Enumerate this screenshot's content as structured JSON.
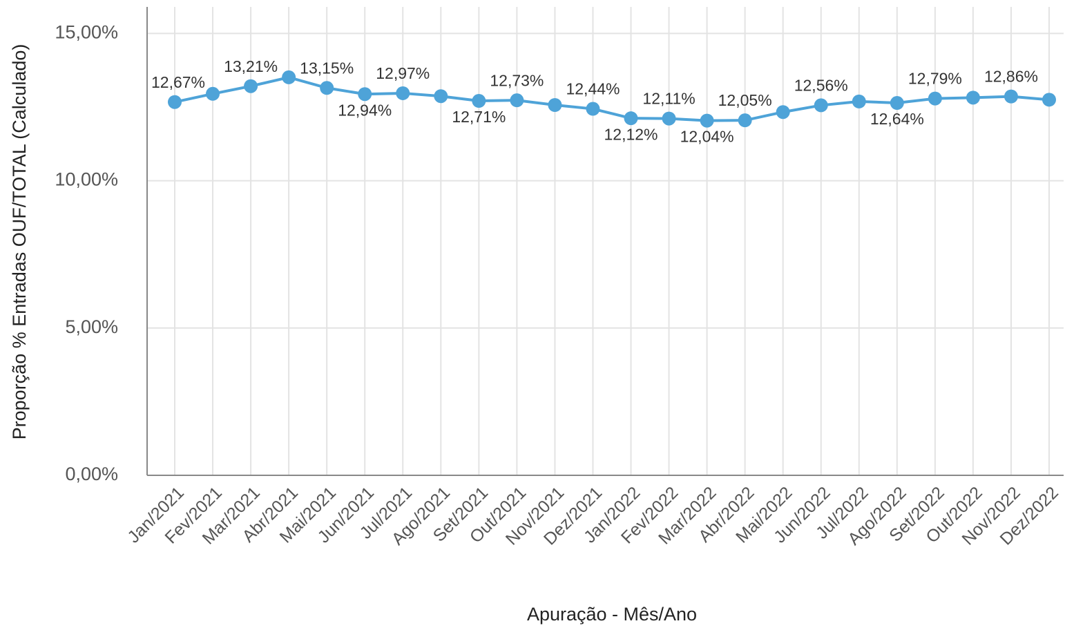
{
  "chart_data": {
    "type": "line",
    "y_label": "Proporção % Entradas OUF/TOTAL (Calculado)",
    "x_label": "Apuração - Mês/Ano",
    "categories": [
      "Jan/2021",
      "Fev/2021",
      "Mar/2021",
      "Abr/2021",
      "Mai/2021",
      "Jun/2021",
      "Jul/2021",
      "Ago/2021",
      "Set/2021",
      "Out/2021",
      "Nov/2021",
      "Dez/2021",
      "Jan/2022",
      "Fev/2022",
      "Mar/2022",
      "Abr/2022",
      "Mai/2022",
      "Jun/2022",
      "Jul/2022",
      "Ago/2022",
      "Set/2022",
      "Out/2022",
      "Nov/2022",
      "Dez/2022"
    ],
    "series": [
      {
        "color": "#4ea3d8",
        "values": [
          12.67,
          12.95,
          13.21,
          13.51,
          13.15,
          12.94,
          12.97,
          12.87,
          12.71,
          12.73,
          12.57,
          12.44,
          12.12,
          12.11,
          12.04,
          12.05,
          12.33,
          12.56,
          12.69,
          12.64,
          12.79,
          12.82,
          12.86,
          12.75
        ],
        "value_labels": [
          "12,67%",
          null,
          "13,21%",
          null,
          "13,15%",
          "12,94%",
          "12,97%",
          null,
          "12,71%",
          "12,73%",
          null,
          "12,44%",
          "12,12%",
          "12,11%",
          "12,04%",
          "12,05%",
          null,
          "12,56%",
          null,
          "12,64%",
          "12,79%",
          null,
          "12,86%",
          null
        ]
      }
    ],
    "ylim": [
      0,
      15.9
    ],
    "yticks": [
      {
        "value": 0,
        "label": "0,00%"
      },
      {
        "value": 5,
        "label": "5,00%"
      },
      {
        "value": 10,
        "label": "10,00%"
      },
      {
        "value": 15,
        "label": "15,00%"
      }
    ],
    "grid": true
  }
}
